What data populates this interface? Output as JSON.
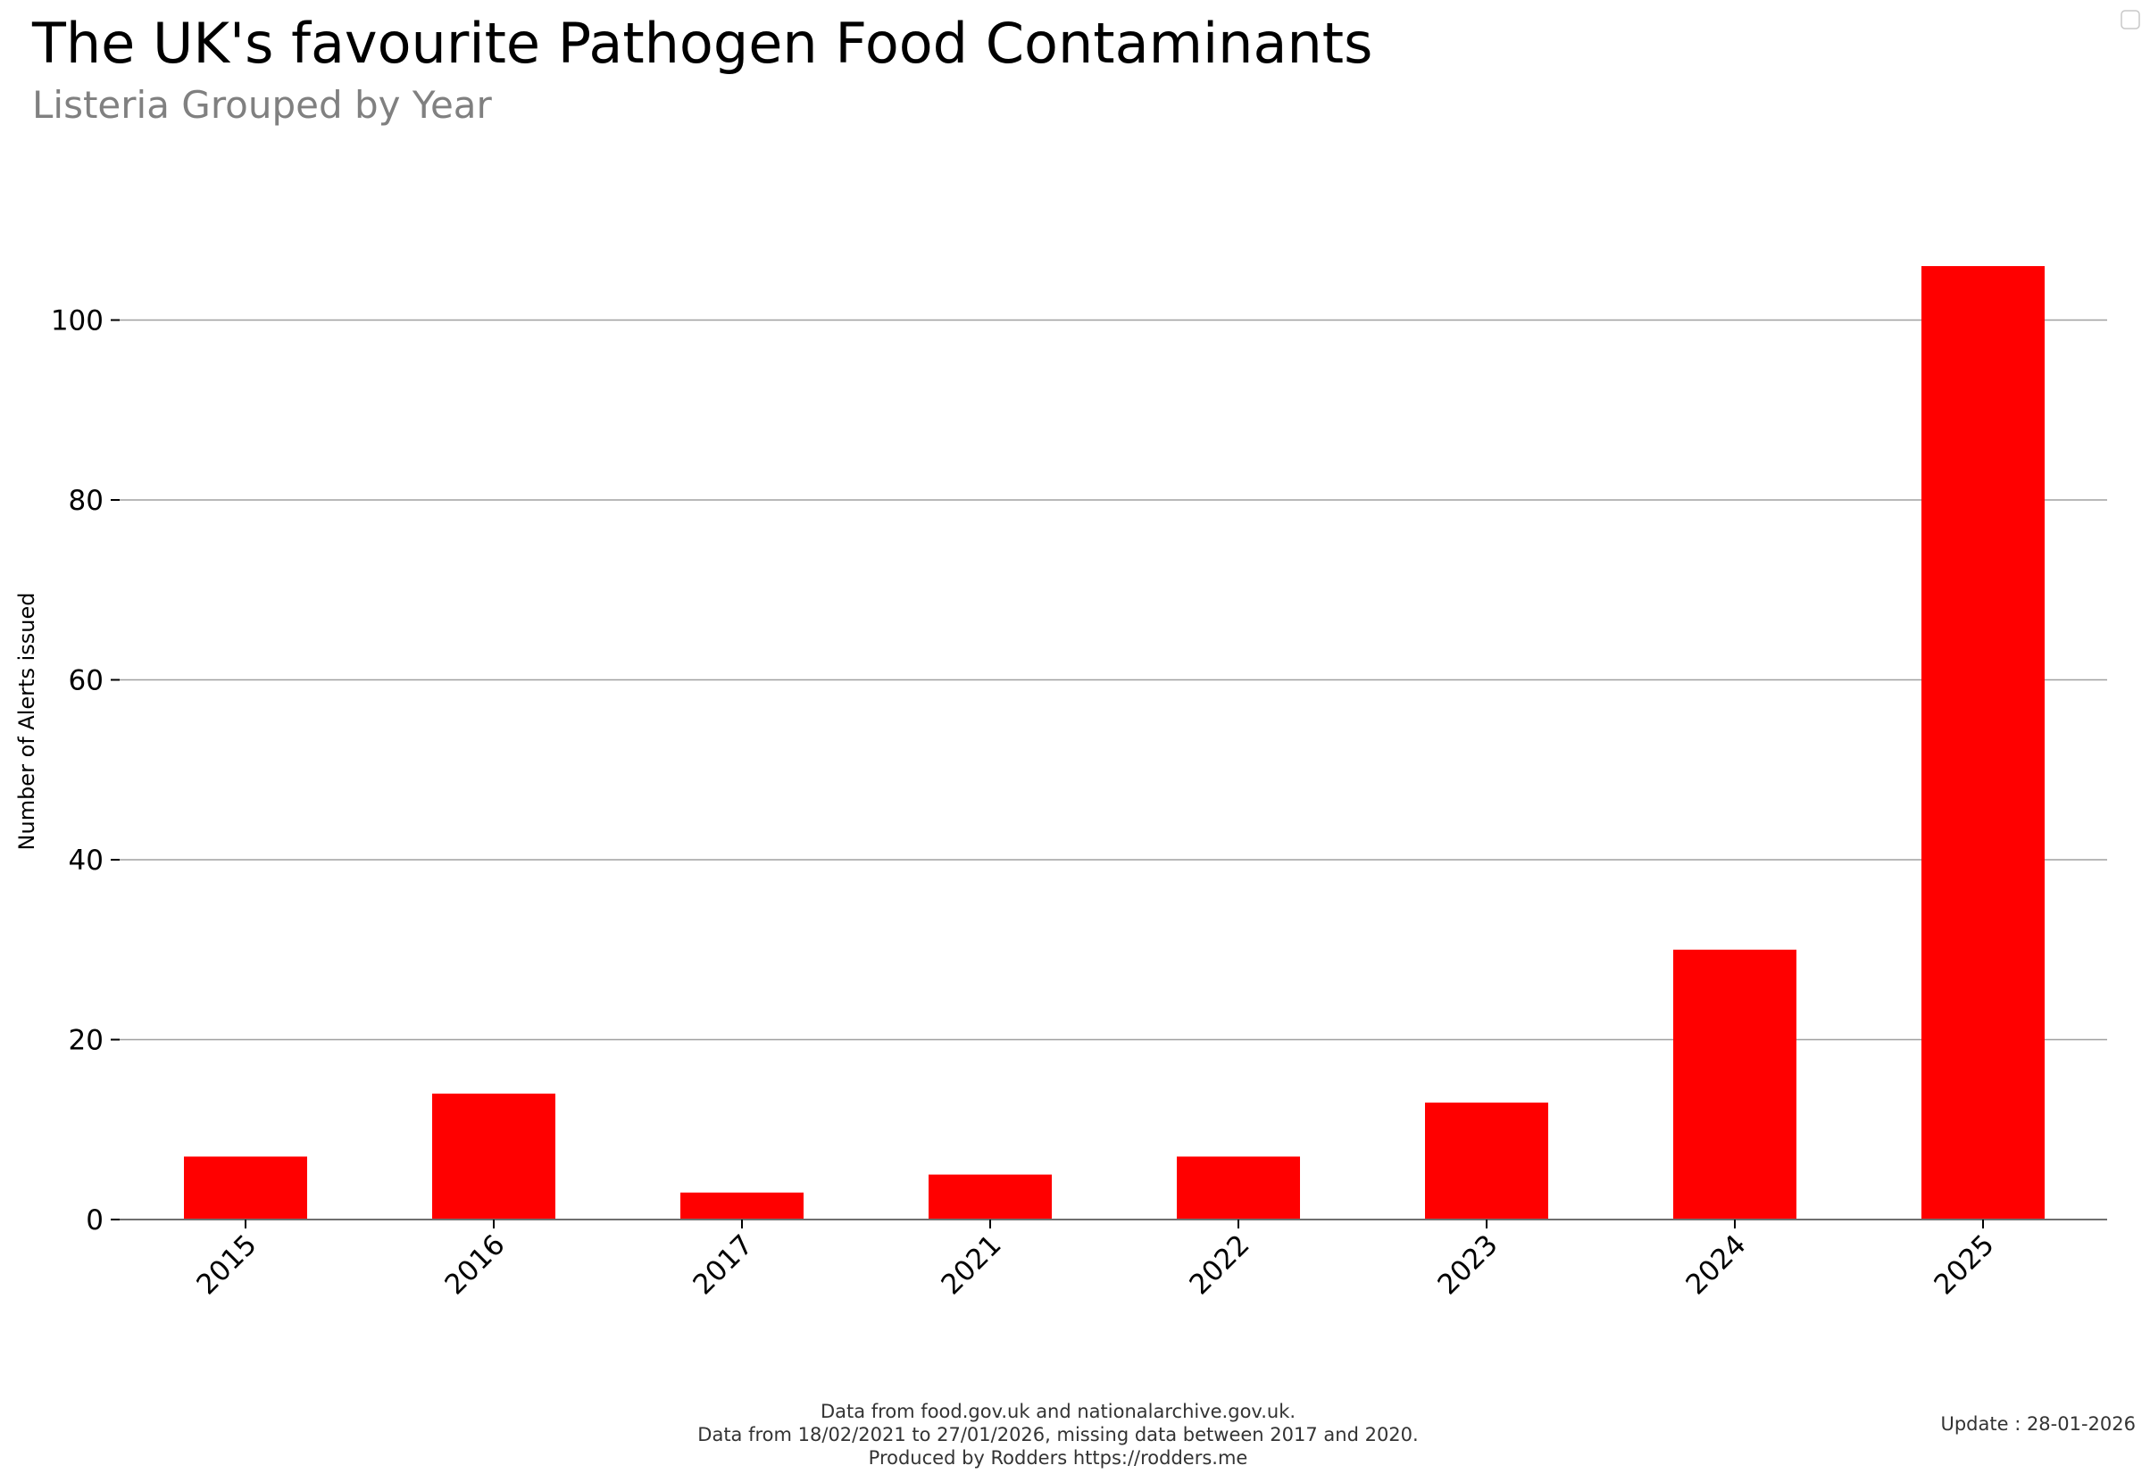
{
  "chart_data": {
    "type": "bar",
    "title": "The UK's favourite Pathogen Food Contaminants",
    "subtitle": "Listeria Grouped by Year",
    "xlabel": "",
    "ylabel": "Number of Alerts issued",
    "categories": [
      "2015",
      "2016",
      "2017",
      "2021",
      "2022",
      "2023",
      "2024",
      "2025"
    ],
    "values": [
      7,
      14,
      3,
      5,
      7,
      13,
      30,
      106
    ],
    "ylim": [
      0,
      112
    ],
    "yticks": [
      0,
      20,
      40,
      60,
      80,
      100
    ],
    "grid": true,
    "bar_color": "#ff0000",
    "legend": "top-right (empty)"
  },
  "footer": {
    "line1": "Data from food.gov.uk and nationalarchive.gov.uk.",
    "line2": "Data from 18/02/2021 to 27/01/2026, missing data between 2017 and 2020.",
    "line3": "Produced by Rodders https://rodders.me",
    "update": "Update : 28-01-2026"
  }
}
